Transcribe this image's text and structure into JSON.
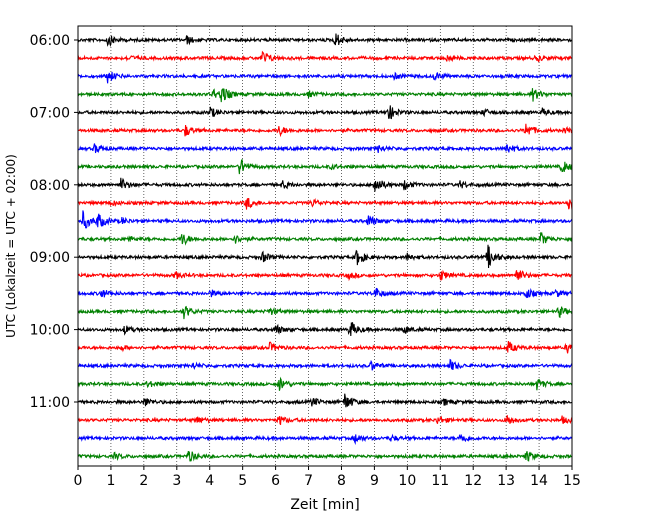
{
  "chart_data": {
    "type": "line",
    "chart_kind": "helicorder",
    "xlabel": "Zeit  [min]",
    "ylabel": "UTC (Lokalzeit = UTC + 02:00)",
    "xlim": [
      0,
      15
    ],
    "x_ticks": [
      0,
      1,
      2,
      3,
      4,
      5,
      6,
      7,
      8,
      9,
      10,
      11,
      12,
      13,
      14,
      15
    ],
    "x_tick_labels": [
      "0",
      "1",
      "2",
      "3",
      "4",
      "5",
      "6",
      "7",
      "8",
      "9",
      "10",
      "11",
      "12",
      "13",
      "14",
      "15"
    ],
    "x_grid": "dotted vertical at each minute",
    "y_tick_labels": [
      "06:00",
      "07:00",
      "08:00",
      "09:00",
      "10:00",
      "11:00"
    ],
    "y_tick_rows": [
      0,
      4,
      8,
      12,
      16,
      20
    ],
    "row_count": 24,
    "row_colors": [
      "#000000",
      "#ff0000",
      "#0000ff",
      "#008000"
    ],
    "rows": [
      {
        "events": [
          [
            0.9,
            1.8
          ],
          [
            3.3,
            1.2
          ],
          [
            7.8,
            2.4
          ]
        ]
      },
      {
        "events": [
          [
            5.6,
            2.2
          ],
          [
            1.5,
            0.8
          ],
          [
            11.2,
            0.9
          ],
          [
            13.9,
            1.0
          ]
        ]
      },
      {
        "events": [
          [
            0.9,
            2.0
          ],
          [
            10.8,
            1.3
          ],
          [
            9.6,
            0.8
          ]
        ]
      },
      {
        "events": [
          [
            4.35,
            2.6
          ],
          [
            4.1,
            1.5
          ],
          [
            13.8,
            2.0
          ],
          [
            7.0,
            0.8
          ]
        ]
      },
      {
        "events": [
          [
            4.0,
            1.7
          ],
          [
            9.4,
            2.9
          ],
          [
            12.3,
            1.1
          ],
          [
            14.1,
            1.0
          ]
        ]
      },
      {
        "events": [
          [
            3.25,
            1.8
          ],
          [
            6.1,
            1.5
          ],
          [
            13.6,
            2.4
          ],
          [
            14.8,
            1.0
          ]
        ]
      },
      {
        "events": [
          [
            0.5,
            1.3
          ],
          [
            9.1,
            1.2
          ],
          [
            13.0,
            1.8
          ]
        ]
      },
      {
        "events": [
          [
            4.9,
            2.8
          ],
          [
            14.7,
            2.0
          ],
          [
            7.7,
            0.7
          ]
        ]
      },
      {
        "events": [
          [
            1.3,
            2.0
          ],
          [
            6.2,
            1.2
          ],
          [
            9.0,
            3.2
          ],
          [
            9.9,
            1.6
          ],
          [
            11.6,
            1.0
          ]
        ]
      },
      {
        "events": [
          [
            5.1,
            2.1
          ],
          [
            7.1,
            1.2
          ],
          [
            14.9,
            3.0
          ],
          [
            1.0,
            0.8
          ]
        ]
      },
      {
        "events": [
          [
            0.15,
            3.0
          ],
          [
            0.6,
            2.4
          ],
          [
            8.8,
            2.0
          ],
          [
            1.3,
            1.0
          ]
        ]
      },
      {
        "events": [
          [
            3.15,
            2.1
          ],
          [
            4.75,
            1.3
          ],
          [
            14.05,
            2.0
          ],
          [
            1.5,
            0.9
          ]
        ]
      },
      {
        "events": [
          [
            5.6,
            1.6
          ],
          [
            8.45,
            2.9
          ],
          [
            10.0,
            1.1
          ],
          [
            12.45,
            3.6
          ]
        ]
      },
      {
        "events": [
          [
            2.95,
            1.2
          ],
          [
            11.0,
            1.6
          ],
          [
            13.3,
            2.5
          ],
          [
            8.2,
            0.9
          ]
        ]
      },
      {
        "events": [
          [
            0.7,
            1.4
          ],
          [
            4.0,
            1.1
          ],
          [
            9.0,
            1.9
          ],
          [
            13.6,
            1.6
          ],
          [
            14.5,
            1.0
          ]
        ]
      },
      {
        "events": [
          [
            3.2,
            2.2
          ],
          [
            5.8,
            1.1
          ],
          [
            14.6,
            1.8
          ]
        ]
      },
      {
        "events": [
          [
            1.4,
            1.3
          ],
          [
            6.0,
            1.5
          ],
          [
            8.25,
            2.9
          ],
          [
            9.9,
            1.1
          ]
        ]
      },
      {
        "events": [
          [
            5.8,
            1.6
          ],
          [
            13.05,
            2.0
          ],
          [
            14.85,
            1.7
          ],
          [
            1.3,
            0.8
          ]
        ]
      },
      {
        "events": [
          [
            8.9,
            1.5
          ],
          [
            11.3,
            1.7
          ],
          [
            3.5,
            0.8
          ]
        ]
      },
      {
        "events": [
          [
            6.1,
            2.2
          ],
          [
            13.9,
            1.9
          ],
          [
            2.1,
            1.0
          ]
        ]
      },
      {
        "events": [
          [
            2.0,
            1.5
          ],
          [
            7.1,
            1.3
          ],
          [
            8.1,
            2.8
          ],
          [
            11.1,
            1.0
          ]
        ]
      },
      {
        "events": [
          [
            3.6,
            1.2
          ],
          [
            6.1,
            1.5
          ],
          [
            10.9,
            1.2
          ],
          [
            13.0,
            1.8
          ],
          [
            14.7,
            1.0
          ]
        ]
      },
      {
        "events": [
          [
            8.4,
            1.5
          ],
          [
            11.6,
            1.7
          ],
          [
            9.5,
            0.9
          ]
        ]
      },
      {
        "events": [
          [
            3.35,
            2.0
          ],
          [
            13.6,
            1.7
          ],
          [
            1.1,
            0.9
          ]
        ]
      }
    ]
  }
}
